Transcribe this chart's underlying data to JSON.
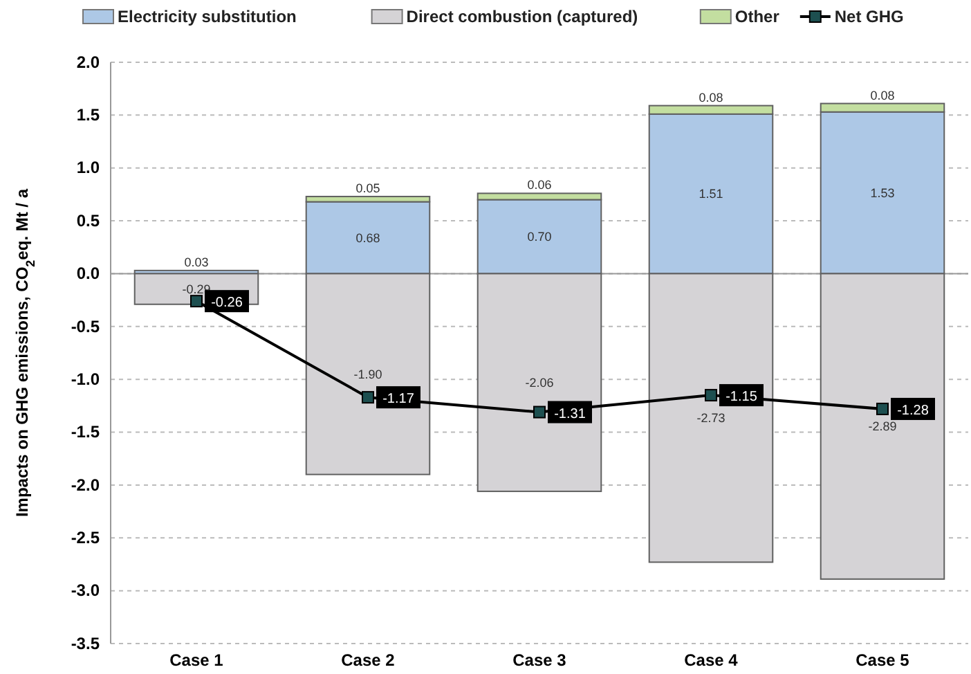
{
  "chart_data": {
    "type": "bar",
    "stacked": true,
    "ylabel": "Impacts on GHG emissions, CO$_{2}$eq. Mt / a",
    "categories": [
      "Case 1",
      "Case 2",
      "Case 3",
      "Case 4",
      "Case 5"
    ],
    "series": [
      {
        "name": "Electricity substitution",
        "color": "#adc8e6",
        "values": [
          0.03,
          0.68,
          0.7,
          1.51,
          1.53
        ],
        "value_labels": [
          "0.03",
          "0.68",
          "0.70",
          "1.51",
          "1.53"
        ]
      },
      {
        "name": "Direct combustion (captured)",
        "color": "#d5d3d6",
        "values": [
          -0.29,
          -1.9,
          -2.06,
          -2.73,
          -2.89
        ],
        "value_labels": [
          "-0.29",
          "-1.90",
          "-2.06",
          "-2.73",
          "-2.89"
        ]
      },
      {
        "name": "Other",
        "color": "#c3dea0",
        "values": [
          null,
          0.05,
          0.06,
          0.08,
          0.08
        ],
        "value_labels": [
          null,
          "0.05",
          "0.06",
          "0.08",
          "0.08"
        ]
      },
      {
        "name": "Net GHG",
        "type": "line",
        "color": "#000000",
        "marker": "square",
        "values": [
          -0.26,
          -1.17,
          -1.31,
          -1.15,
          -1.28
        ],
        "value_labels": [
          "-0.26",
          "-1.17",
          "-1.31",
          "-1.15",
          "-1.28"
        ]
      }
    ],
    "ylim": [
      -3.5,
      2.0
    ],
    "yticks": [
      {
        "value": -3.5,
        "label": "-3.5"
      },
      {
        "value": -3,
        "label": "-3.0"
      },
      {
        "value": -2.5,
        "label": "-2.5"
      },
      {
        "value": -2,
        "label": "-2.0"
      },
      {
        "value": -1.5,
        "label": "-1.5"
      },
      {
        "value": -1,
        "label": "-1.0"
      },
      {
        "value": -0.5,
        "label": "-0.5"
      },
      {
        "value": 0,
        "label": "0.0"
      },
      {
        "value": 0.5,
        "label": "0.5"
      },
      {
        "value": 1,
        "label": "1.0"
      },
      {
        "value": 1.5,
        "label": "1.5"
      },
      {
        "value": 2,
        "label": "2.0"
      }
    ],
    "grid": "y",
    "legend": "top"
  }
}
